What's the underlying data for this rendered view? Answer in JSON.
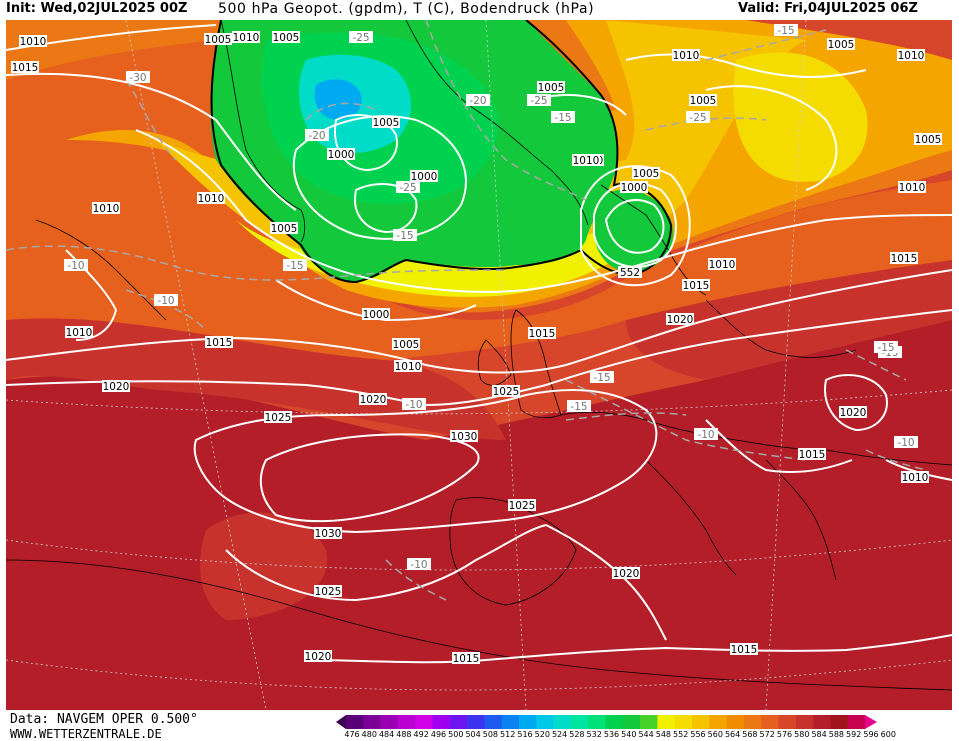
{
  "header": {
    "init": "Init: Wed,02JUL2025 00Z",
    "title": "500 hPa Geopot. (gpdm), T (C), Bodendruck (hPa)",
    "valid": "Valid: Fri,04JUL2025 06Z"
  },
  "footer": {
    "data_source": "Data: NAVGEM OPER 0.500°",
    "website": "WWW.WETTERZENTRALE.DE"
  },
  "colorbar": {
    "values": [
      "476",
      "480",
      "484",
      "488",
      "492",
      "496",
      "500",
      "504",
      "508",
      "512",
      "516",
      "520",
      "524",
      "528",
      "532",
      "536",
      "540",
      "544",
      "548",
      "552",
      "556",
      "560",
      "564",
      "568",
      "572",
      "576",
      "580",
      "584",
      "588",
      "592",
      "596",
      "600"
    ],
    "colors": [
      "#3c0050",
      "#5a0078",
      "#7a0096",
      "#9b00b4",
      "#bb00d4",
      "#d200e6",
      "#a000f0",
      "#6e14f0",
      "#3c32f0",
      "#1e5af0",
      "#0a82f0",
      "#00aaf0",
      "#00c8e6",
      "#00dcc8",
      "#00e6a0",
      "#00e178",
      "#00d250",
      "#14c83c",
      "#46d228",
      "#f0f000",
      "#f5dc00",
      "#f5c300",
      "#f5a500",
      "#f08c00",
      "#eb7814",
      "#e65f1e",
      "#d74628",
      "#c8322d",
      "#b41e28",
      "#a0141e",
      "#c80050",
      "#e6008c"
    ]
  },
  "pressure_labels": [
    "1005",
    "1010",
    "1015",
    "1010",
    "1005",
    "1010",
    "1005",
    "1000",
    "1005",
    "1000",
    "1000",
    "1005",
    "1010",
    "1005",
    "1000",
    "1005",
    "1010",
    "1015",
    "1020",
    "1015",
    "1010",
    "1010",
    "1015",
    "1000",
    "1005",
    "1010",
    "1015",
    "1010",
    "1020",
    "1025",
    "1030",
    "1025",
    "1020",
    "1025",
    "1030",
    "1025",
    "1020",
    "1015",
    "1015",
    "1020",
    "1015",
    "1010",
    "1010",
    "1005",
    "1010",
    "1010",
    "1015"
  ],
  "temperature_labels": [
    "-15",
    "-25",
    "-30",
    "-20",
    "-25",
    "-20",
    "-25",
    "-15",
    "-25",
    "-15",
    "-15",
    "-10",
    "-10",
    "-15",
    "-10",
    "-15",
    "-10",
    "-15",
    "-10",
    "-10",
    "-15"
  ],
  "geopotential_labels": [
    "552"
  ]
}
